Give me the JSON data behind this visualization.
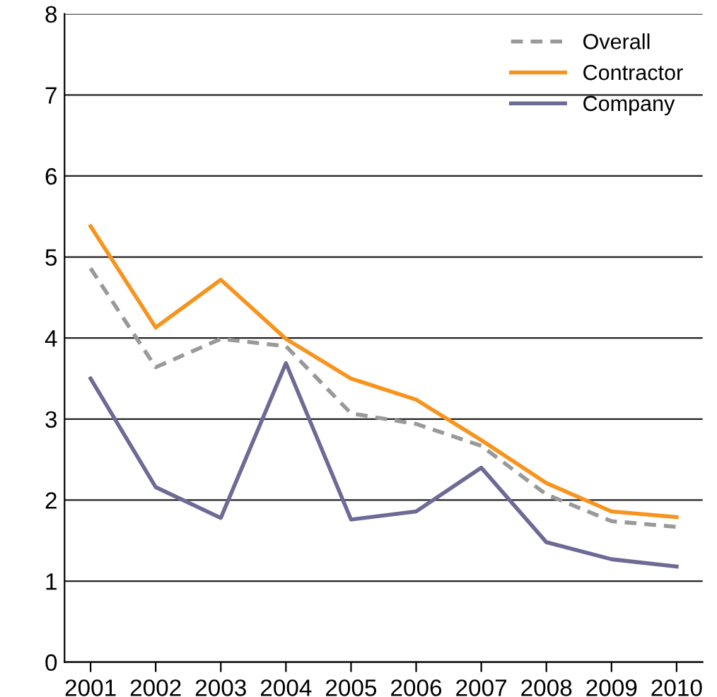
{
  "chart_data": {
    "type": "line",
    "categories": [
      "2001",
      "2002",
      "2003",
      "2004",
      "2005",
      "2006",
      "2007",
      "2008",
      "2009",
      "2010"
    ],
    "series": [
      {
        "name": "Overall",
        "color": "#999999",
        "line_style": "dashed",
        "values": [
          4.86,
          3.64,
          3.99,
          3.9,
          3.07,
          2.94,
          2.67,
          2.07,
          1.74,
          1.67
        ]
      },
      {
        "name": "Contractor",
        "color": "#f7941d",
        "line_style": "solid",
        "values": [
          5.38,
          4.13,
          4.72,
          3.99,
          3.5,
          3.24,
          2.74,
          2.21,
          1.86,
          1.79
        ]
      },
      {
        "name": "Company",
        "color": "#6e6a96",
        "line_style": "solid",
        "values": [
          3.5,
          2.16,
          1.78,
          3.69,
          1.76,
          1.86,
          2.4,
          1.48,
          1.27,
          1.18
        ]
      }
    ],
    "ylim": [
      0,
      8
    ],
    "yticks": [
      0,
      1,
      2,
      3,
      4,
      5,
      6,
      7,
      8
    ],
    "grid": "y",
    "legend": "top right",
    "marker": "none"
  }
}
